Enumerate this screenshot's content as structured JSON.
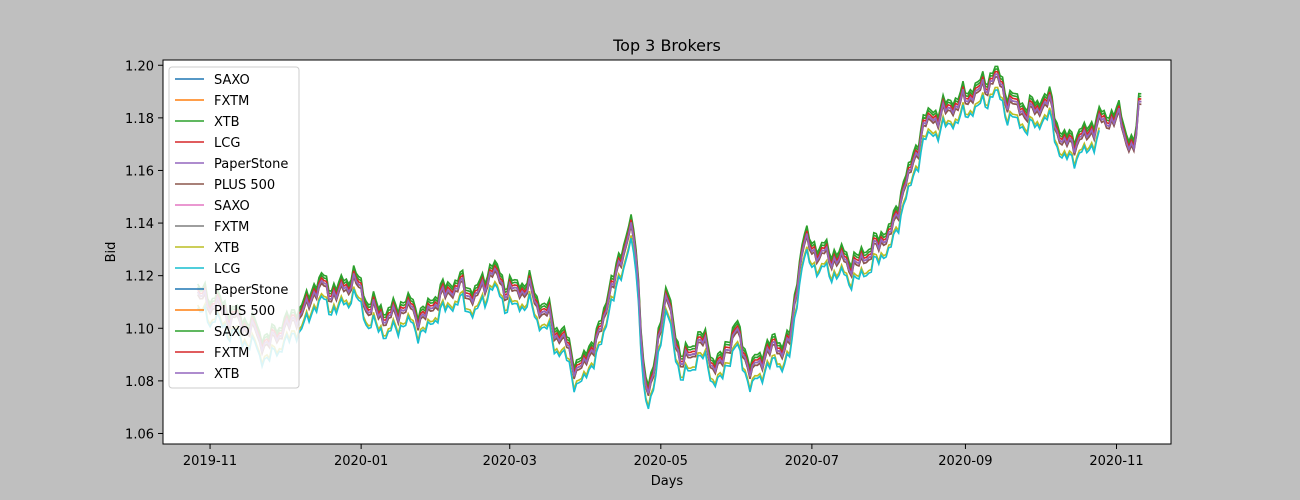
{
  "chart_data": {
    "type": "line",
    "title": "Top 3 Brokers",
    "xlabel": "Days",
    "ylabel": "Bid",
    "xlim": [
      "2019-10-13",
      "2020-11-23"
    ],
    "ylim": [
      1.056,
      1.202
    ],
    "x_ticks": [
      "2019-11-01",
      "2020-01-01",
      "2020-03-01",
      "2020-05-01",
      "2020-07-01",
      "2020-09-01",
      "2020-11-01"
    ],
    "x_tick_labels": [
      "2019-11",
      "2020-01",
      "2020-03",
      "2020-05",
      "2020-07",
      "2020-09",
      "2020-11"
    ],
    "y_ticks": [
      1.06,
      1.08,
      1.1,
      1.12,
      1.14,
      1.16,
      1.18,
      1.2
    ],
    "y_tick_labels": [
      "1.06",
      "1.08",
      "1.10",
      "1.12",
      "1.14",
      "1.16",
      "1.18",
      "1.20"
    ],
    "grid": false,
    "legend_position": "upper-left",
    "base_series": {
      "x": [
        "2019-10-27",
        "2019-11-03",
        "2019-11-10",
        "2019-11-17",
        "2019-11-24",
        "2019-12-01",
        "2019-12-08",
        "2019-12-15",
        "2019-12-22",
        "2019-12-29",
        "2020-01-05",
        "2020-01-12",
        "2020-01-19",
        "2020-01-26",
        "2020-02-02",
        "2020-02-09",
        "2020-02-16",
        "2020-02-23",
        "2020-03-01",
        "2020-03-08",
        "2020-03-15",
        "2020-03-22",
        "2020-03-29",
        "2020-04-05",
        "2020-04-12",
        "2020-04-19",
        "2020-04-26",
        "2020-05-03",
        "2020-05-10",
        "2020-05-17",
        "2020-05-24",
        "2020-05-31",
        "2020-06-07",
        "2020-06-14",
        "2020-06-21",
        "2020-06-28",
        "2020-07-05",
        "2020-07-12",
        "2020-07-19",
        "2020-07-26",
        "2020-08-02",
        "2020-08-09",
        "2020-08-16",
        "2020-08-23",
        "2020-08-30",
        "2020-09-06",
        "2020-09-13",
        "2020-09-20",
        "2020-09-27",
        "2020-10-04",
        "2020-10-11",
        "2020-10-18",
        "2020-10-25",
        "2020-11-01",
        "2020-11-08",
        "2020-11-11"
      ],
      "y": [
        1.112,
        1.109,
        1.104,
        1.1,
        1.094,
        1.1,
        1.106,
        1.116,
        1.113,
        1.118,
        1.107,
        1.104,
        1.108,
        1.104,
        1.112,
        1.116,
        1.112,
        1.121,
        1.114,
        1.115,
        1.106,
        1.096,
        1.084,
        1.095,
        1.118,
        1.138,
        1.075,
        1.11,
        1.087,
        1.095,
        1.085,
        1.098,
        1.084,
        1.092,
        1.093,
        1.132,
        1.128,
        1.126,
        1.124,
        1.13,
        1.137,
        1.158,
        1.178,
        1.182,
        1.186,
        1.19,
        1.195,
        1.185,
        1.182,
        1.186,
        1.17,
        1.172,
        1.178,
        1.18,
        1.168,
        1.188
      ]
    },
    "series": [
      {
        "name": "SAXO",
        "color": "#1f77b4",
        "offset": 0.0,
        "end": "2019-12-20"
      },
      {
        "name": "FXTM",
        "color": "#ff7f0e",
        "offset": 0.0,
        "end": "2019-12-20"
      },
      {
        "name": "XTB",
        "color": "#2ca02c",
        "offset": 0.002,
        "end": "2020-11-11"
      },
      {
        "name": "LCG",
        "color": "#d62728",
        "offset": 0.0,
        "end": "2020-11-11"
      },
      {
        "name": "PaperStone",
        "color": "#9467bd",
        "offset": -0.001,
        "end": "2020-11-11"
      },
      {
        "name": "PLUS 500",
        "color": "#8c564b",
        "offset": -0.001,
        "end": "2020-11-11"
      },
      {
        "name": "SAXO",
        "color": "#e377c2",
        "offset": 0.0,
        "end": "2020-11-11"
      },
      {
        "name": "FXTM",
        "color": "#7f7f7f",
        "offset": 0.0,
        "end": "2020-11-11"
      },
      {
        "name": "XTB",
        "color": "#bcbd22",
        "offset": -0.005,
        "end": "2020-10-25"
      },
      {
        "name": "LCG",
        "color": "#17becf",
        "offset": -0.006,
        "end": "2020-10-25"
      },
      {
        "name": "PaperStone",
        "color": "#1f77b4",
        "offset": 0.0,
        "end": "2019-12-20"
      },
      {
        "name": "PLUS 500",
        "color": "#ff7f0e",
        "offset": 0.0,
        "end": "2019-12-20"
      },
      {
        "name": "SAXO",
        "color": "#2ca02c",
        "offset": 0.003,
        "end": "2020-11-11"
      },
      {
        "name": "FXTM",
        "color": "#d62728",
        "offset": 0.001,
        "end": "2020-11-11"
      },
      {
        "name": "XTB",
        "color": "#9467bd",
        "offset": 0.0,
        "end": "2020-11-11"
      }
    ]
  }
}
